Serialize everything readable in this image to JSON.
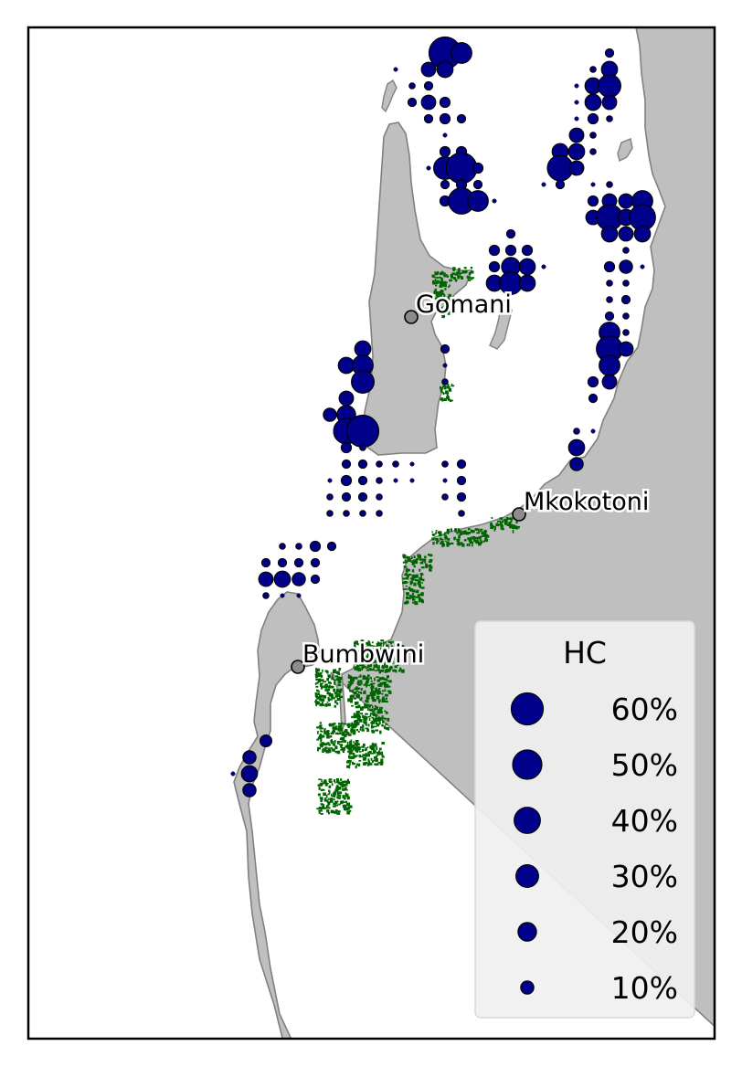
{
  "colors": {
    "land": "#bfbfbf",
    "coast": "#808080",
    "mangrove": "#006400",
    "bubble": "#00008b",
    "town": "#8c8c8c",
    "legend_bg": "#f0f0f0"
  },
  "towns": [
    {
      "name": "Gomani"
    },
    {
      "name": "Mkokotoni"
    },
    {
      "name": "Bumbwini"
    }
  ],
  "legend": {
    "title": "HC",
    "items": [
      {
        "label": "60%",
        "value": 60
      },
      {
        "label": "50%",
        "value": 50
      },
      {
        "label": "40%",
        "value": 40
      },
      {
        "label": "30%",
        "value": 30
      },
      {
        "label": "20%",
        "value": 20
      },
      {
        "label": "10%",
        "value": 10
      }
    ]
  },
  "bubbles": [
    [
      487,
      58,
      60
    ],
    [
      505,
      58,
      25
    ],
    [
      469,
      76,
      12
    ],
    [
      487,
      76,
      15
    ],
    [
      469,
      94,
      4
    ],
    [
      451,
      94,
      2
    ],
    [
      433,
      76,
      1
    ],
    [
      451,
      112,
      4
    ],
    [
      469,
      112,
      12
    ],
    [
      487,
      112,
      6
    ],
    [
      469,
      130,
      4
    ],
    [
      487,
      130,
      6
    ],
    [
      505,
      130,
      4
    ],
    [
      487,
      148,
      1
    ],
    [
      487,
      166,
      6
    ],
    [
      505,
      166,
      6
    ],
    [
      487,
      184,
      30
    ],
    [
      505,
      184,
      55
    ],
    [
      523,
      184,
      6
    ],
    [
      469,
      184,
      1
    ],
    [
      487,
      202,
      4
    ],
    [
      505,
      202,
      6
    ],
    [
      523,
      202,
      4
    ],
    [
      487,
      220,
      6
    ],
    [
      505,
      220,
      40
    ],
    [
      523,
      220,
      25
    ],
    [
      541,
      220,
      1
    ],
    [
      667,
      58,
      4
    ],
    [
      649,
      76,
      2
    ],
    [
      667,
      76,
      15
    ],
    [
      649,
      94,
      15
    ],
    [
      667,
      94,
      30
    ],
    [
      631,
      94,
      1
    ],
    [
      649,
      112,
      15
    ],
    [
      667,
      112,
      12
    ],
    [
      631,
      112,
      1
    ],
    [
      649,
      130,
      6
    ],
    [
      667,
      130,
      2
    ],
    [
      631,
      130,
      1
    ],
    [
      631,
      148,
      12
    ],
    [
      649,
      148,
      2
    ],
    [
      613,
      166,
      15
    ],
    [
      631,
      166,
      15
    ],
    [
      649,
      166,
      2
    ],
    [
      613,
      184,
      38
    ],
    [
      631,
      184,
      12
    ],
    [
      595,
      202,
      1
    ],
    [
      613,
      202,
      4
    ],
    [
      649,
      202,
      1
    ],
    [
      667,
      202,
      2
    ],
    [
      649,
      220,
      6
    ],
    [
      667,
      220,
      12
    ],
    [
      685,
      220,
      12
    ],
    [
      703,
      220,
      25
    ],
    [
      649,
      238,
      12
    ],
    [
      667,
      238,
      40
    ],
    [
      685,
      238,
      15
    ],
    [
      703,
      238,
      40
    ],
    [
      667,
      256,
      15
    ],
    [
      685,
      256,
      12
    ],
    [
      703,
      256,
      15
    ],
    [
      685,
      274,
      2
    ],
    [
      667,
      292,
      6
    ],
    [
      685,
      292,
      10
    ],
    [
      703,
      292,
      1
    ],
    [
      667,
      310,
      2
    ],
    [
      685,
      310,
      2
    ],
    [
      667,
      328,
      2
    ],
    [
      685,
      328,
      4
    ],
    [
      667,
      346,
      4
    ],
    [
      685,
      346,
      2
    ],
    [
      667,
      364,
      25
    ],
    [
      685,
      364,
      2
    ],
    [
      667,
      382,
      40
    ],
    [
      685,
      382,
      12
    ],
    [
      667,
      400,
      25
    ],
    [
      649,
      418,
      6
    ],
    [
      667,
      418,
      12
    ],
    [
      649,
      436,
      4
    ],
    [
      631,
      472,
      2
    ],
    [
      649,
      472,
      1
    ],
    [
      631,
      490,
      15
    ],
    [
      631,
      508,
      10
    ],
    [
      559,
      256,
      4
    ],
    [
      541,
      274,
      6
    ],
    [
      559,
      274,
      6
    ],
    [
      577,
      274,
      6
    ],
    [
      541,
      292,
      6
    ],
    [
      559,
      292,
      20
    ],
    [
      577,
      292,
      15
    ],
    [
      595,
      292,
      1
    ],
    [
      541,
      310,
      15
    ],
    [
      559,
      310,
      30
    ],
    [
      577,
      310,
      15
    ],
    [
      487,
      382,
      4
    ],
    [
      487,
      400,
      1
    ],
    [
      487,
      418,
      2
    ],
    [
      397,
      382,
      15
    ],
    [
      379,
      400,
      15
    ],
    [
      397,
      400,
      25
    ],
    [
      397,
      418,
      30
    ],
    [
      379,
      436,
      12
    ],
    [
      361,
      454,
      10
    ],
    [
      379,
      454,
      20
    ],
    [
      379,
      472,
      38
    ],
    [
      397,
      472,
      60
    ],
    [
      379,
      490,
      6
    ],
    [
      397,
      490,
      2
    ],
    [
      379,
      508,
      4
    ],
    [
      397,
      508,
      4
    ],
    [
      415,
      508,
      2
    ],
    [
      433,
      508,
      2
    ],
    [
      451,
      508,
      1
    ],
    [
      487,
      508,
      2
    ],
    [
      505,
      508,
      4
    ],
    [
      361,
      526,
      1
    ],
    [
      379,
      526,
      6
    ],
    [
      397,
      526,
      4
    ],
    [
      415,
      526,
      2
    ],
    [
      433,
      526,
      1
    ],
    [
      451,
      526,
      1
    ],
    [
      487,
      526,
      1
    ],
    [
      505,
      526,
      4
    ],
    [
      361,
      544,
      2
    ],
    [
      379,
      544,
      4
    ],
    [
      397,
      544,
      4
    ],
    [
      415,
      544,
      2
    ],
    [
      487,
      544,
      2
    ],
    [
      505,
      544,
      4
    ],
    [
      361,
      562,
      2
    ],
    [
      379,
      562,
      2
    ],
    [
      397,
      562,
      2
    ],
    [
      415,
      562,
      2
    ],
    [
      505,
      562,
      2
    ],
    [
      309,
      598,
      2
    ],
    [
      327,
      598,
      2
    ],
    [
      345,
      598,
      6
    ],
    [
      363,
      598,
      4
    ],
    [
      291,
      616,
      4
    ],
    [
      309,
      616,
      4
    ],
    [
      327,
      616,
      4
    ],
    [
      345,
      616,
      4
    ],
    [
      291,
      634,
      12
    ],
    [
      309,
      634,
      15
    ],
    [
      327,
      634,
      10
    ],
    [
      345,
      634,
      4
    ],
    [
      291,
      652,
      2
    ],
    [
      309,
      652,
      1
    ],
    [
      327,
      652,
      1
    ],
    [
      291,
      811,
      8
    ],
    [
      273,
      829,
      10
    ],
    [
      255,
      847,
      1
    ],
    [
      273,
      847,
      15
    ],
    [
      273,
      865,
      10
    ]
  ],
  "mangroves": [
    [
      472,
      296,
      20,
      30
    ],
    [
      478,
      326,
      14,
      20
    ],
    [
      492,
      292,
      24,
      14
    ],
    [
      480,
      420,
      14,
      18
    ],
    [
      472,
      578,
      60,
      18
    ],
    [
      440,
      606,
      30,
      18
    ],
    [
      440,
      626,
      22,
      34
    ],
    [
      536,
      566,
      30,
      14
    ],
    [
      386,
      700,
      54,
      34
    ],
    [
      344,
      730,
      28,
      42
    ],
    [
      380,
      738,
      46,
      30
    ],
    [
      384,
      770,
      40,
      30
    ],
    [
      346,
      790,
      44,
      32
    ],
    [
      378,
      812,
      40,
      26
    ],
    [
      346,
      852,
      36,
      38
    ]
  ]
}
